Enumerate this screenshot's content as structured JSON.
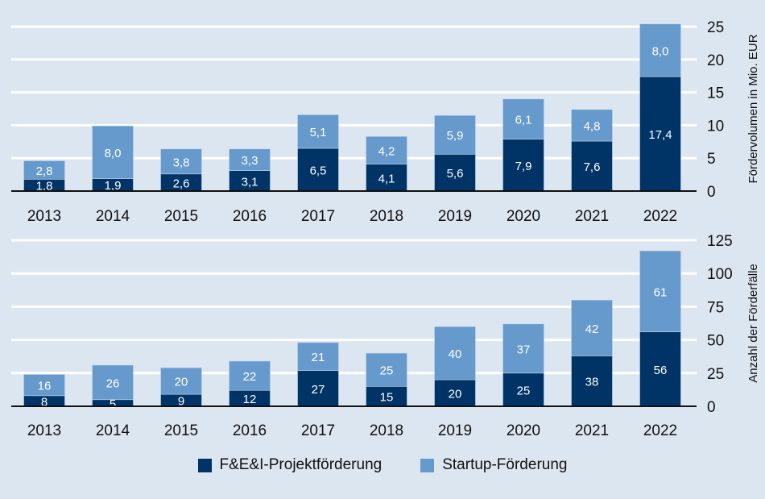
{
  "colors": {
    "background": "#dce6f1",
    "projekt": "#003366",
    "startup": "#6699cc",
    "grid": "#ffffff"
  },
  "legend": {
    "placement": "bottom",
    "items": [
      "F&E&I-Projektförderung",
      "Startup-Förderung"
    ]
  },
  "chart_data": [
    {
      "type": "bar",
      "stacked": true,
      "categories": [
        "2013",
        "2014",
        "2015",
        "2016",
        "2017",
        "2018",
        "2019",
        "2020",
        "2021",
        "2022"
      ],
      "series": [
        {
          "name": "F&E&I-Projektförderung",
          "values": [
            1.8,
            1.9,
            2.6,
            3.1,
            6.5,
            4.1,
            5.6,
            7.9,
            7.6,
            17.4
          ],
          "labels": [
            "1,8",
            "1,9",
            "2,6",
            "3,1",
            "6,5",
            "4,1",
            "5,6",
            "7,9",
            "7,6",
            "17,4"
          ]
        },
        {
          "name": "Startup-Förderung",
          "values": [
            2.8,
            8.0,
            3.8,
            3.3,
            5.1,
            4.2,
            5.9,
            6.1,
            4.8,
            8.0
          ],
          "labels": [
            "2,8",
            "8,0",
            "3,8",
            "3,3",
            "5,1",
            "4,2",
            "5,9",
            "6,1",
            "4,8",
            "8,0"
          ]
        }
      ],
      "ylabel": "Fördervolumen in Mio. EUR",
      "ylim": [
        0,
        25
      ],
      "yticks": [
        "0",
        "5",
        "10",
        "15",
        "20",
        "25"
      ],
      "y_axis_side": "right",
      "grid": true
    },
    {
      "type": "bar",
      "stacked": true,
      "categories": [
        "2013",
        "2014",
        "2015",
        "2016",
        "2017",
        "2018",
        "2019",
        "2020",
        "2021",
        "2022"
      ],
      "series": [
        {
          "name": "F&E&I-Projektförderung",
          "values": [
            8,
            5,
            9,
            12,
            27,
            15,
            20,
            25,
            38,
            56
          ],
          "labels": [
            "8",
            "5",
            "9",
            "12",
            "27",
            "15",
            "20",
            "25",
            "38",
            "56"
          ]
        },
        {
          "name": "Startup-Förderung",
          "values": [
            16,
            26,
            20,
            22,
            21,
            25,
            40,
            37,
            42,
            61
          ],
          "labels": [
            "16",
            "26",
            "20",
            "22",
            "21",
            "25",
            "40",
            "37",
            "42",
            "61"
          ]
        }
      ],
      "ylabel": "Anzahl der Förderfälle",
      "ylim": [
        0,
        125
      ],
      "yticks": [
        "0",
        "25",
        "50",
        "75",
        "100",
        "125"
      ],
      "y_axis_side": "right",
      "grid": true
    }
  ]
}
